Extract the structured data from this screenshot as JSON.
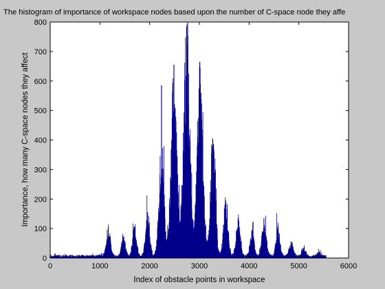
{
  "chart_data": {
    "type": "bar",
    "title": "The histogram of importance of workspace nodes based upon the number of C-space node they affe",
    "xlabel": "Index of obstacle points in workspace",
    "ylabel": "Importance, how many C-space nodes they affect",
    "xlim": [
      0,
      6000
    ],
    "ylim": [
      0,
      800
    ],
    "xticks": [
      0,
      1000,
      2000,
      3000,
      4000,
      5000,
      6000
    ],
    "yticks": [
      0,
      100,
      200,
      300,
      400,
      500,
      600,
      700,
      800
    ],
    "grid": false,
    "legend": "none",
    "bar_color": "#00008b",
    "axes_background": "#ffffff",
    "figure_background": "#c8c8c8",
    "x_extent": [
      1,
      5550
    ],
    "baseline_level": 8,
    "peaks": [
      {
        "x": 1170,
        "y": 105
      },
      {
        "x": 1470,
        "y": 70
      },
      {
        "x": 1700,
        "y": 105
      },
      {
        "x": 1960,
        "y": 155
      },
      {
        "x": 2240,
        "y": 390
      },
      {
        "x": 2490,
        "y": 655
      },
      {
        "x": 2745,
        "y": 785
      },
      {
        "x": 3010,
        "y": 665
      },
      {
        "x": 3270,
        "y": 405
      },
      {
        "x": 3530,
        "y": 195
      },
      {
        "x": 3780,
        "y": 135
      },
      {
        "x": 4060,
        "y": 90
      },
      {
        "x": 4300,
        "y": 135
      },
      {
        "x": 4580,
        "y": 108
      },
      {
        "x": 4850,
        "y": 50
      },
      {
        "x": 5100,
        "y": 30
      },
      {
        "x": 5400,
        "y": 15
      }
    ]
  }
}
